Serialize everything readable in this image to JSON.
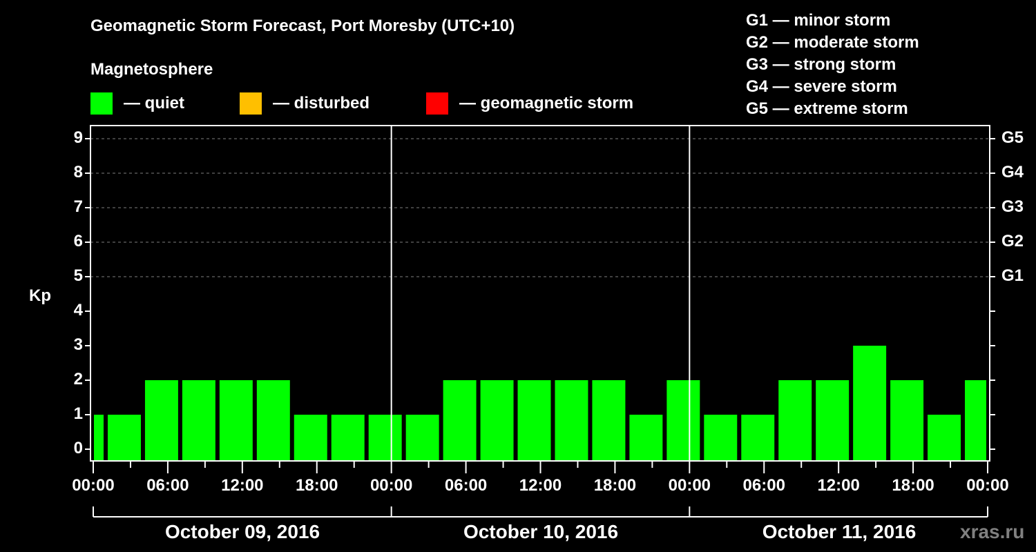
{
  "header": {
    "title": "Geomagnetic Storm Forecast, Port Moresby (UTC+10)",
    "subtitle": "Magnetosphere",
    "legend": [
      {
        "label": "— quiet",
        "color": "#00ff00"
      },
      {
        "label": "— disturbed",
        "color": "#ffbf00"
      },
      {
        "label": "— geomagnetic storm",
        "color": "#ff0000"
      }
    ]
  },
  "g_legend": [
    "G1 — minor storm",
    "G2 — moderate storm",
    "G3 — strong storm",
    "G4 — severe storm",
    "G5 — extreme storm"
  ],
  "axes": {
    "ylabel": "Kp",
    "y_ticks": [
      "0",
      "1",
      "2",
      "3",
      "4",
      "5",
      "6",
      "7",
      "8",
      "9"
    ],
    "g_ticks": [
      {
        "label": "G1",
        "kp": 5
      },
      {
        "label": "G2",
        "kp": 6
      },
      {
        "label": "G3",
        "kp": 7
      },
      {
        "label": "G4",
        "kp": 8
      },
      {
        "label": "G5",
        "kp": 9
      }
    ],
    "x_ticks": [
      "00:00",
      "06:00",
      "12:00",
      "18:00",
      "00:00",
      "06:00",
      "12:00",
      "18:00",
      "00:00",
      "06:00",
      "12:00",
      "18:00",
      "00:00"
    ],
    "dates": [
      "October 09, 2016",
      "October 10, 2016",
      "October 11, 2016"
    ]
  },
  "watermark": "xras.ru",
  "colors": {
    "quiet": "#00ff00",
    "disturbed": "#ffbf00",
    "storm": "#ff0000",
    "background": "#000000",
    "grid": "#808080"
  },
  "chart_data": {
    "type": "bar",
    "title": "Geomagnetic Storm Forecast, Port Moresby (UTC+10)",
    "xlabel": "",
    "ylabel": "Kp",
    "ylim": [
      0,
      9
    ],
    "grid": "dashed horizontal at Kp 5-9",
    "legend_position": "top",
    "bar_start_hours": [
      0,
      1,
      4,
      7,
      10,
      13,
      16,
      19,
      22,
      25,
      28,
      31,
      34,
      37,
      40,
      43,
      46,
      49,
      52,
      55,
      58,
      61,
      64,
      67,
      70
    ],
    "bar_end_hours": [
      1,
      4,
      7,
      10,
      13,
      16,
      19,
      22,
      25,
      28,
      31,
      34,
      37,
      40,
      43,
      46,
      49,
      52,
      55,
      58,
      61,
      64,
      67,
      70,
      72
    ],
    "categories": [
      "Oct 09 00:00",
      "Oct 09 01:00",
      "Oct 09 04:00",
      "Oct 09 07:00",
      "Oct 09 10:00",
      "Oct 09 13:00",
      "Oct 09 16:00",
      "Oct 09 19:00",
      "Oct 09 22:00",
      "Oct 10 01:00",
      "Oct 10 04:00",
      "Oct 10 07:00",
      "Oct 10 10:00",
      "Oct 10 13:00",
      "Oct 10 16:00",
      "Oct 10 19:00",
      "Oct 10 22:00",
      "Oct 11 01:00",
      "Oct 11 04:00",
      "Oct 11 07:00",
      "Oct 11 10:00",
      "Oct 11 13:00",
      "Oct 11 16:00",
      "Oct 11 19:00",
      "Oct 11 22:00"
    ],
    "values": [
      1,
      1,
      2,
      2,
      2,
      2,
      1,
      1,
      1,
      1,
      2,
      2,
      2,
      2,
      2,
      1,
      2,
      1,
      1,
      2,
      2,
      3,
      2,
      1,
      2
    ],
    "status": "quiet",
    "legend": [
      "quiet",
      "disturbed",
      "geomagnetic storm"
    ],
    "right_axis": {
      "G1": 5,
      "G2": 6,
      "G3": 7,
      "G4": 8,
      "G5": 9
    }
  }
}
